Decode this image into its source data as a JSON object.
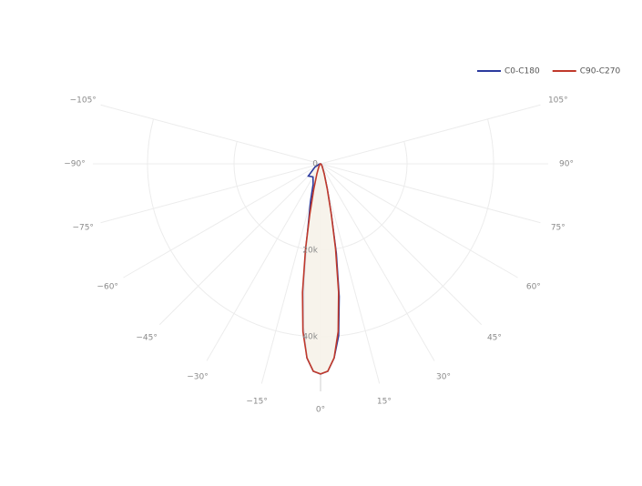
{
  "chart_data": {
    "type": "polar",
    "x": [
      -90,
      -75,
      -60,
      -45,
      -30,
      -20,
      -15,
      -12,
      -10,
      -8,
      -6,
      -4,
      -2,
      0,
      2,
      4,
      6,
      8,
      10,
      12,
      15,
      20,
      30,
      45,
      60,
      75,
      90
    ],
    "series": [
      {
        "name": "C0-C180",
        "color": "#2b3a9e",
        "values": [
          0,
          300,
          1500,
          4000,
          3500,
          5000,
          9000,
          13000,
          19000,
          28000,
          38000,
          45000,
          48000,
          48600,
          48000,
          45000,
          40000,
          31000,
          21000,
          12000,
          6000,
          2500,
          800,
          300,
          100,
          0,
          0
        ]
      },
      {
        "name": "C90-C270",
        "color": "#c0392b",
        "values": [
          0,
          0,
          100,
          300,
          800,
          2500,
          6000,
          12000,
          20000,
          30000,
          39000,
          45000,
          48000,
          48600,
          48000,
          45000,
          39000,
          30000,
          20000,
          12000,
          6000,
          2500,
          800,
          300,
          100,
          0,
          0
        ]
      }
    ],
    "rlim": [
      0,
      50000
    ],
    "rticks": [
      0,
      {
        "value": 20000,
        "label": "20k"
      },
      {
        "value": 40000,
        "label": "40k"
      }
    ],
    "angleticks": [
      {
        "value": -105,
        "label": "−105°"
      },
      {
        "value": -90,
        "label": "−90°"
      },
      {
        "value": -75,
        "label": "−75°"
      },
      {
        "value": -60,
        "label": "−60°"
      },
      {
        "value": -45,
        "label": "−45°"
      },
      {
        "value": -30,
        "label": "−30°"
      },
      {
        "value": -15,
        "label": "−15°"
      },
      {
        "value": 0,
        "label": "0°"
      },
      {
        "value": 15,
        "label": "15°"
      },
      {
        "value": 30,
        "label": "30°"
      },
      {
        "value": 45,
        "label": "45°"
      },
      {
        "value": 60,
        "label": "60°"
      },
      {
        "value": 75,
        "label": "75°"
      },
      {
        "value": 90,
        "label": "90°"
      },
      {
        "value": 105,
        "label": "105°"
      }
    ],
    "grid": true,
    "fill": "#f6f3ea",
    "legend": "top-right"
  }
}
